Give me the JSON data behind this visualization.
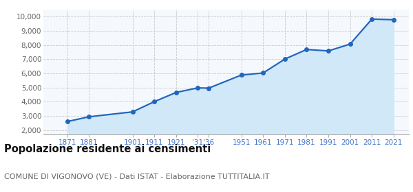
{
  "years": [
    1871,
    1881,
    1901,
    1911,
    1921,
    1931,
    1936,
    1951,
    1961,
    1971,
    1981,
    1991,
    2001,
    2011,
    2021
  ],
  "population": [
    2607,
    2943,
    3288,
    4011,
    4658,
    4980,
    4963,
    5886,
    6030,
    7012,
    7687,
    7586,
    8070,
    9832,
    9787
  ],
  "yticks": [
    2000,
    3000,
    4000,
    5000,
    6000,
    7000,
    8000,
    9000,
    10000
  ],
  "ytick_labels": [
    "2,000",
    "3,000",
    "4,000",
    "5,000",
    "6,000",
    "7,000",
    "8,000",
    "9,000",
    "10,000"
  ],
  "ylim": [
    1700,
    10500
  ],
  "xlim": [
    1860,
    2028
  ],
  "line_color": "#2266bb",
  "fill_color": "#d0e8f8",
  "marker_color": "#2266bb",
  "bg_color": "#f5f9fd",
  "grid_color": "#c8c8c8",
  "title": "Popolazione residente ai censimenti",
  "subtitle": "COMUNE DI VIGONOVO (VE) - Dati ISTAT - Elaborazione TUTTITALIA.IT",
  "title_fontsize": 10.5,
  "subtitle_fontsize": 8,
  "axis_tick_color": "#4477cc",
  "axis_label_fontsize": 7.5,
  "x_tick_positions": [
    1871,
    1881,
    1901,
    1911,
    1921,
    1931,
    1936,
    1951,
    1961,
    1971,
    1981,
    1991,
    2001,
    2011,
    2021
  ],
  "x_tick_labels": [
    "1871",
    "1881",
    "1901",
    "1911",
    "1921",
    "'31",
    "'36",
    "1951",
    "1961",
    "1971",
    "1981",
    "1991",
    "2001",
    "2011",
    "2021"
  ],
  "grid_x_positions": [
    1871,
    1881,
    1901,
    1911,
    1921,
    1931,
    1936,
    1951,
    1961,
    1971,
    1981,
    1991,
    2001,
    2011,
    2021
  ]
}
